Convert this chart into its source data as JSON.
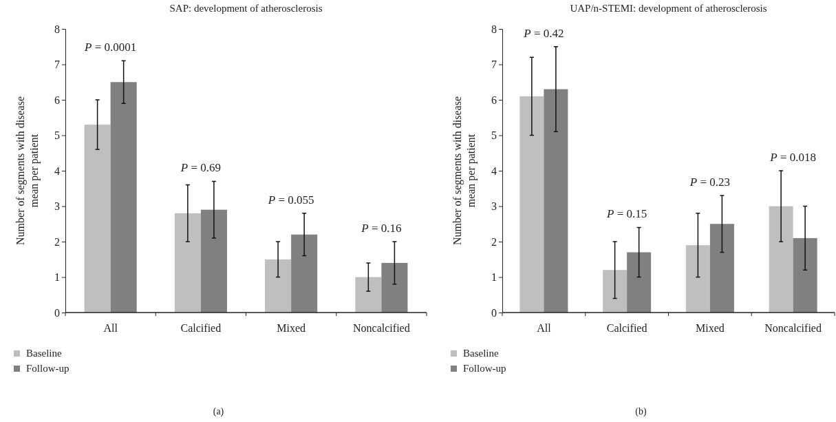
{
  "chart_data": [
    {
      "type": "bar",
      "title": "SAP: development of atherosclerosis",
      "ylabel": "Number of segments with disease mean per patient",
      "categories": [
        "All",
        "Calcified",
        "Mixed",
        "Noncalcified"
      ],
      "ylim": [
        0,
        8
      ],
      "yticks": [
        0,
        1,
        2,
        3,
        4,
        5,
        6,
        7,
        8
      ],
      "legend": "bottom left",
      "grid": false,
      "series": [
        {
          "name": "Baseline",
          "color": "#bfbfbf",
          "values": [
            5.3,
            2.8,
            1.5,
            1.0
          ],
          "errors": [
            [
              4.6,
              6.0
            ],
            [
              2.0,
              3.6
            ],
            [
              1.0,
              2.0
            ],
            [
              0.6,
              1.4
            ]
          ]
        },
        {
          "name": "Follow-up",
          "color": "#808080",
          "values": [
            6.5,
            2.9,
            2.2,
            1.4
          ],
          "errors": [
            [
              5.9,
              7.1
            ],
            [
              2.1,
              3.7
            ],
            [
              1.6,
              2.8
            ],
            [
              0.8,
              2.0
            ]
          ]
        }
      ],
      "annotations": [
        "P = 0.0001",
        "P = 0.69",
        "P = 0.055",
        "P = 0.16",
        "(a)"
      ]
    },
    {
      "type": "bar",
      "title": "UAP/n-STEMI: development of atherosclerosis",
      "ylabel": "Number of segments with disease mean per patient",
      "categories": [
        "All",
        "Calcified",
        "Mixed",
        "Noncalcified"
      ],
      "ylim": [
        0,
        8
      ],
      "yticks": [
        0,
        1,
        2,
        3,
        4,
        5,
        6,
        7,
        8
      ],
      "legend": "bottom left",
      "grid": false,
      "series": [
        {
          "name": "Baseline",
          "color": "#bfbfbf",
          "values": [
            6.1,
            1.2,
            1.9,
            3.0
          ],
          "errors": [
            [
              5.0,
              7.2
            ],
            [
              0.4,
              2.0
            ],
            [
              1.0,
              2.8
            ],
            [
              2.0,
              4.0
            ]
          ]
        },
        {
          "name": "Follow-up",
          "color": "#808080",
          "values": [
            6.3,
            1.7,
            2.5,
            2.1
          ],
          "errors": [
            [
              5.1,
              7.5
            ],
            [
              1.0,
              2.4
            ],
            [
              1.7,
              3.3
            ],
            [
              1.2,
              3.0
            ]
          ]
        }
      ],
      "annotations": [
        "P = 0.42",
        "P = 0.15",
        "P = 0.23",
        "P = 0.018",
        "(b)"
      ]
    }
  ]
}
